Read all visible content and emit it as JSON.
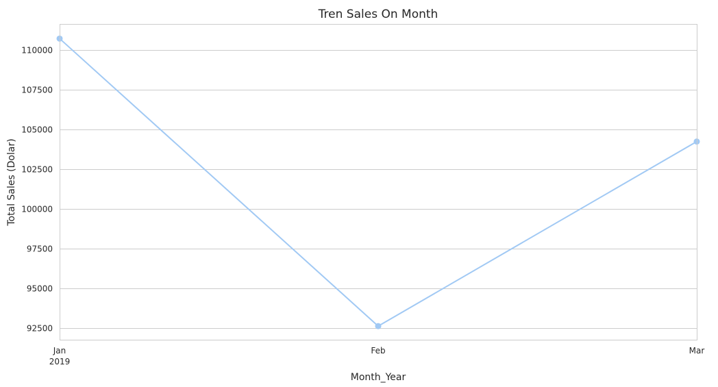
{
  "chart_data": {
    "type": "line",
    "title": "Tren Sales On Month",
    "xlabel": "Month_Year",
    "ylabel": "Total Sales (Dolar)",
    "categories": [
      "Jan",
      "Feb",
      "Mar"
    ],
    "x_sublabels": [
      "2019",
      "",
      ""
    ],
    "series": [
      {
        "values": [
          110730,
          92610,
          104240
        ],
        "color": "#a1c9f4",
        "marker": "circle"
      }
    ],
    "ylim": [
      91750,
      111650
    ],
    "yticks": [
      92500,
      95000,
      97500,
      100000,
      102500,
      105000,
      107500,
      110000
    ],
    "grid": "horizontal",
    "background_color": "#ffffff",
    "grid_color": "#cccccc"
  }
}
